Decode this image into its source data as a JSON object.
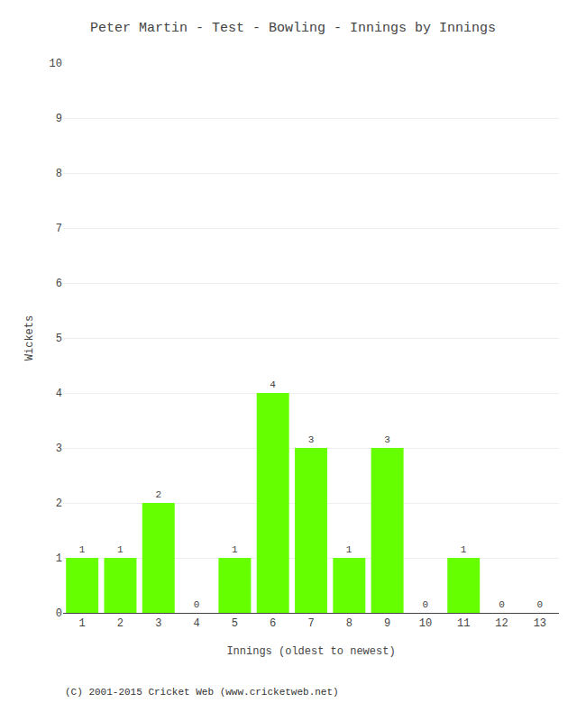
{
  "chart_data": {
    "type": "bar",
    "title": "Peter Martin - Test - Bowling - Innings by Innings",
    "xlabel": "Innings (oldest to newest)",
    "ylabel": "Wickets",
    "categories": [
      "1",
      "2",
      "3",
      "4",
      "5",
      "6",
      "7",
      "8",
      "9",
      "10",
      "11",
      "12",
      "13"
    ],
    "values": [
      1,
      1,
      2,
      0,
      1,
      4,
      3,
      1,
      3,
      0,
      1,
      0,
      0
    ],
    "color": "#66ff00",
    "ylim": [
      0,
      10
    ],
    "yticks": [
      0,
      1,
      2,
      3,
      4,
      5,
      6,
      7,
      8,
      9,
      10
    ],
    "grid": true,
    "data_labels": true,
    "annotations": [
      "(C) 2001-2015 Cricket Web (www.cricketweb.net)"
    ]
  }
}
